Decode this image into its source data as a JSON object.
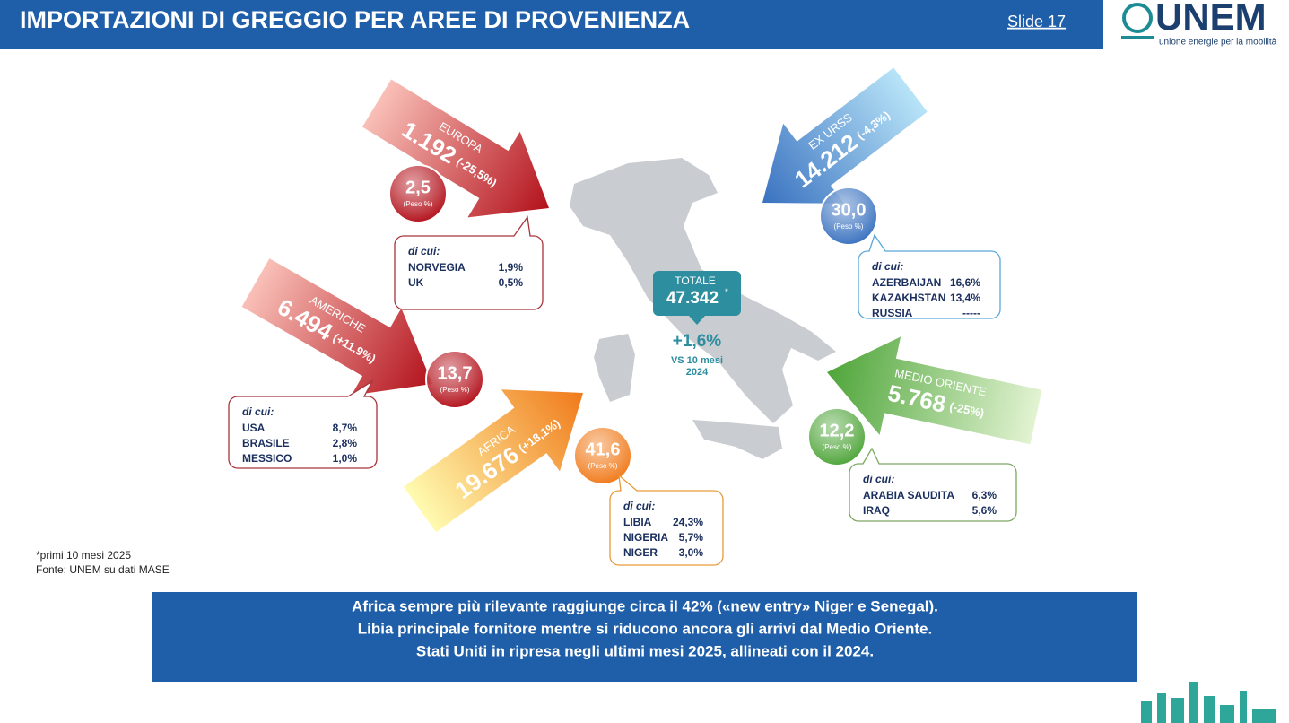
{
  "header": {
    "title": "IMPORTAZIONI DI GREGGIO PER AREE DI PROVENIENZA",
    "slide": "Slide 17",
    "logo": "UNEM",
    "logo_tagline": "unione energie per la mobilità"
  },
  "regions": [
    {
      "name": "EUROPA",
      "value": "1.192",
      "change": "(-25,5%)",
      "share": "2,5",
      "share_label": "(Peso %)",
      "breakdown_title": "di cui:",
      "breakdown": [
        [
          "NORVEGIA",
          "1,9%"
        ],
        [
          "UK",
          "0,5%"
        ]
      ]
    },
    {
      "name": "AMERICHE",
      "value": "6.494",
      "change": "(+11,9%)",
      "share": "13,7",
      "share_label": "(Peso %)",
      "breakdown_title": "di cui:",
      "breakdown": [
        [
          "USA",
          "8,7%"
        ],
        [
          "BRASILE",
          "2,8%"
        ],
        [
          "MESSICO",
          "1,0%"
        ]
      ]
    },
    {
      "name": "AFRICA",
      "value": "19.676",
      "change": "(+18,1%)",
      "share": "41,6",
      "share_label": "(Peso %)",
      "breakdown_title": "di cui:",
      "breakdown": [
        [
          "LIBIA",
          "24,3%"
        ],
        [
          "NIGERIA",
          "5,7%"
        ],
        [
          "NIGER",
          "3,0%"
        ]
      ]
    },
    {
      "name": "EX URSS",
      "value": "14.212",
      "change": "(-4,3%)",
      "share": "30,0",
      "share_label": "(Peso %)",
      "breakdown_title": "di cui:",
      "breakdown": [
        [
          "AZERBAIJAN",
          "16,6%"
        ],
        [
          "KAZAKHSTAN",
          "13,4%"
        ],
        [
          "RUSSIA",
          "-----"
        ]
      ]
    },
    {
      "name": "MEDIO ORIENTE",
      "value": "5.768",
      "change": "(-25%)",
      "share": "12,2",
      "share_label": "(Peso %)",
      "breakdown_title": "di cui:",
      "breakdown": [
        [
          "ARABIA SAUDITA",
          "6,3%"
        ],
        [
          "IRAQ",
          "5,6%"
        ]
      ]
    }
  ],
  "total": {
    "label": "TOTALE",
    "value": "47.342",
    "mark": "*",
    "change": "+1,6%",
    "comparison": [
      "VS 10 mesi",
      "2024"
    ]
  },
  "notes": [
    "*primi 10 mesi 2025",
    "Fonte: UNEM su dati MASE"
  ],
  "summary": [
    "Africa sempre più  rilevante raggiunge circa il 42% («new entry» Niger e Senegal).",
    "Libia principale fornitore mentre si riducono ancora gli arrivi dal Medio Oriente.",
    "Stati Uniti in ripresa negli ultimi mesi 2025, allineati con il 2024."
  ]
}
